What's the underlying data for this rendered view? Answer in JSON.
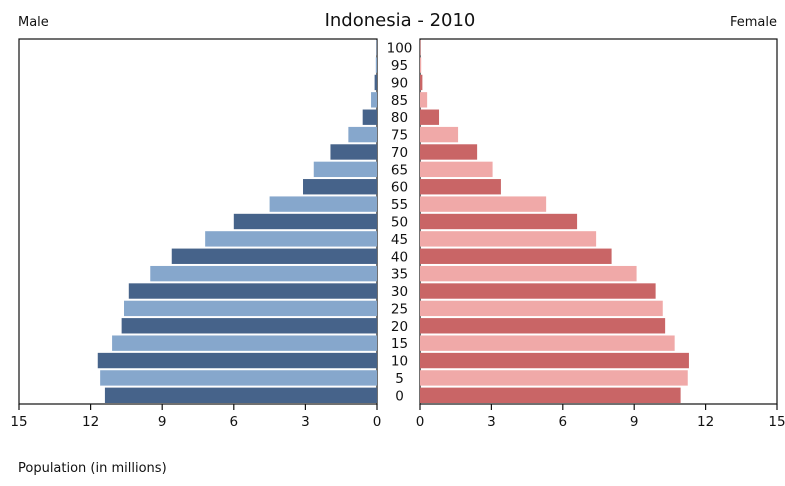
{
  "chart_data": {
    "type": "bar",
    "title": "Indonesia - 2010",
    "left_label": "Male",
    "right_label": "Female",
    "xlabel": "Population (in millions)",
    "xlim": [
      0,
      15
    ],
    "x_ticks": [
      15,
      12,
      9,
      6,
      3,
      0
    ],
    "x_ticks_right": [
      0,
      3,
      6,
      9,
      12,
      15
    ],
    "grid": false,
    "categories": [
      "100",
      "95",
      "90",
      "85",
      "80",
      "75",
      "70",
      "65",
      "60",
      "55",
      "50",
      "45",
      "40",
      "35",
      "30",
      "25",
      "20",
      "15",
      "10",
      "5",
      "0"
    ],
    "series": [
      {
        "name": "Male",
        "values": [
          0.02,
          0.05,
          0.1,
          0.25,
          0.6,
          1.2,
          1.95,
          2.65,
          3.1,
          4.5,
          6.0,
          7.2,
          8.6,
          9.5,
          10.4,
          10.6,
          10.7,
          11.1,
          11.7,
          11.6,
          11.4
        ]
      },
      {
        "name": "Female",
        "values": [
          0.02,
          0.05,
          0.1,
          0.3,
          0.8,
          1.6,
          2.4,
          3.05,
          3.4,
          5.3,
          6.6,
          7.4,
          8.05,
          9.1,
          9.9,
          10.2,
          10.3,
          10.7,
          11.3,
          11.25,
          10.95
        ]
      }
    ],
    "colors": {
      "male_dark": "#46638a",
      "male_light": "#86a7cc",
      "female_dark": "#c96566",
      "female_light": "#f0a9a8",
      "axis": "#111111"
    }
  }
}
